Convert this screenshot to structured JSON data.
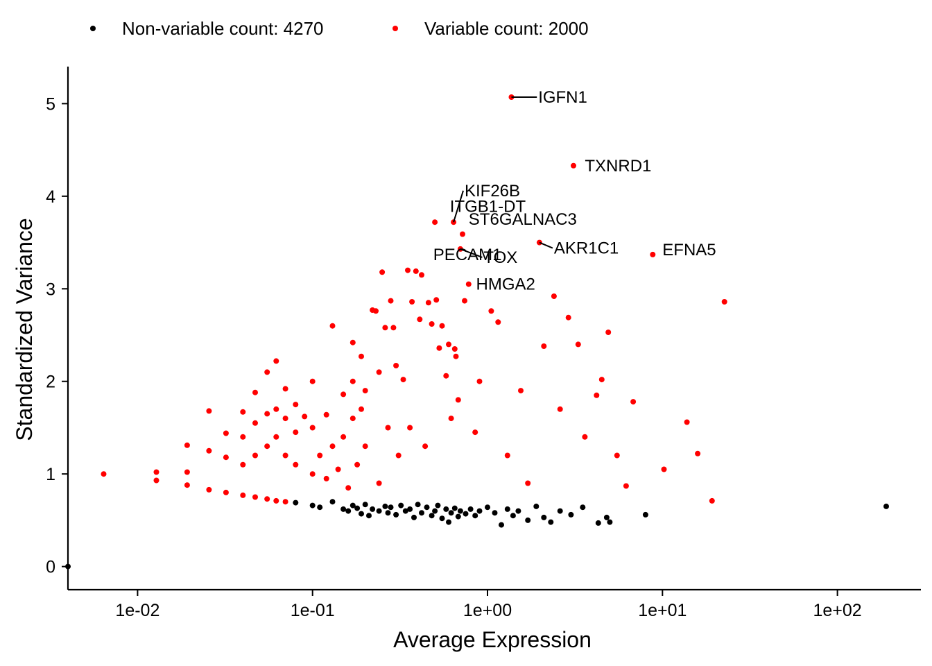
{
  "chart_data": {
    "type": "scatter",
    "xscale": "log10",
    "xlabel": "Average Expression",
    "ylabel": "Standardized Variance",
    "xlim": [
      0.004,
      300
    ],
    "ylim": [
      -0.25,
      5.4
    ],
    "x_ticks": [
      {
        "value": 0.01,
        "label": "1e-02"
      },
      {
        "value": 0.1,
        "label": "1e-01"
      },
      {
        "value": 1,
        "label": "1e+00"
      },
      {
        "value": 10,
        "label": "1e+01"
      },
      {
        "value": 100,
        "label": "1e+02"
      }
    ],
    "y_ticks": [
      {
        "value": 0,
        "label": "0"
      },
      {
        "value": 1,
        "label": "1"
      },
      {
        "value": 2,
        "label": "2"
      },
      {
        "value": 3,
        "label": "3"
      },
      {
        "value": 4,
        "label": "4"
      },
      {
        "value": 5,
        "label": "5"
      }
    ],
    "grid": false,
    "legend_position": "top",
    "legend": [
      {
        "series": "nonvariable",
        "label": "Non-variable count: 4270",
        "color": "#000000"
      },
      {
        "series": "variable",
        "label": "Variable count: 2000",
        "color": "#ff0000"
      }
    ],
    "series": [
      {
        "name": "Non-variable count: 4270",
        "color": "#000000",
        "points": [
          [
            0.004,
            0.0
          ],
          [
            0.08,
            0.69
          ],
          [
            0.1,
            0.66
          ],
          [
            0.11,
            0.64
          ],
          [
            0.13,
            0.7
          ],
          [
            0.15,
            0.62
          ],
          [
            0.16,
            0.6
          ],
          [
            0.17,
            0.66
          ],
          [
            0.18,
            0.63
          ],
          [
            0.19,
            0.57
          ],
          [
            0.2,
            0.67
          ],
          [
            0.21,
            0.55
          ],
          [
            0.22,
            0.62
          ],
          [
            0.24,
            0.6
          ],
          [
            0.26,
            0.65
          ],
          [
            0.27,
            0.58
          ],
          [
            0.28,
            0.64
          ],
          [
            0.3,
            0.56
          ],
          [
            0.32,
            0.66
          ],
          [
            0.34,
            0.6
          ],
          [
            0.36,
            0.62
          ],
          [
            0.38,
            0.53
          ],
          [
            0.4,
            0.67
          ],
          [
            0.42,
            0.58
          ],
          [
            0.45,
            0.64
          ],
          [
            0.48,
            0.55
          ],
          [
            0.5,
            0.6
          ],
          [
            0.52,
            0.66
          ],
          [
            0.55,
            0.52
          ],
          [
            0.58,
            0.62
          ],
          [
            0.6,
            0.48
          ],
          [
            0.62,
            0.58
          ],
          [
            0.65,
            0.63
          ],
          [
            0.68,
            0.54
          ],
          [
            0.7,
            0.6
          ],
          [
            0.75,
            0.57
          ],
          [
            0.8,
            0.62
          ],
          [
            0.85,
            0.55
          ],
          [
            0.9,
            0.6
          ],
          [
            1.0,
            0.64
          ],
          [
            1.1,
            0.58
          ],
          [
            1.2,
            0.45
          ],
          [
            1.3,
            0.62
          ],
          [
            1.4,
            0.55
          ],
          [
            1.5,
            0.6
          ],
          [
            1.7,
            0.5
          ],
          [
            1.9,
            0.65
          ],
          [
            2.1,
            0.53
          ],
          [
            2.3,
            0.48
          ],
          [
            2.6,
            0.6
          ],
          [
            3.0,
            0.56
          ],
          [
            3.5,
            0.64
          ],
          [
            4.3,
            0.47
          ],
          [
            4.8,
            0.53
          ],
          [
            5.0,
            0.48
          ],
          [
            8.0,
            0.56
          ],
          [
            190.0,
            0.65
          ]
        ]
      },
      {
        "name": "Variable count: 2000",
        "color": "#ff0000",
        "points": [
          [
            0.0064,
            1.0
          ],
          [
            0.0128,
            1.02
          ],
          [
            0.0128,
            0.93
          ],
          [
            0.0192,
            1.31
          ],
          [
            0.0192,
            1.02
          ],
          [
            0.0192,
            0.88
          ],
          [
            0.0256,
            1.68
          ],
          [
            0.0256,
            1.25
          ],
          [
            0.0256,
            0.83
          ],
          [
            0.032,
            1.44
          ],
          [
            0.032,
            1.18
          ],
          [
            0.032,
            0.8
          ],
          [
            0.04,
            1.67
          ],
          [
            0.04,
            1.4
          ],
          [
            0.04,
            1.1
          ],
          [
            0.04,
            0.77
          ],
          [
            0.047,
            1.88
          ],
          [
            0.047,
            1.55
          ],
          [
            0.047,
            1.2
          ],
          [
            0.047,
            0.75
          ],
          [
            0.055,
            2.1
          ],
          [
            0.055,
            1.65
          ],
          [
            0.055,
            1.3
          ],
          [
            0.055,
            0.73
          ],
          [
            0.062,
            2.22
          ],
          [
            0.062,
            1.7
          ],
          [
            0.062,
            1.4
          ],
          [
            0.062,
            0.71
          ],
          [
            0.07,
            1.92
          ],
          [
            0.07,
            1.6
          ],
          [
            0.07,
            1.2
          ],
          [
            0.07,
            0.7
          ],
          [
            0.08,
            1.75
          ],
          [
            0.08,
            1.45
          ],
          [
            0.08,
            1.1
          ],
          [
            0.09,
            1.62
          ],
          [
            0.1,
            2.0
          ],
          [
            0.1,
            1.5
          ],
          [
            0.1,
            1.0
          ],
          [
            0.11,
            1.2
          ],
          [
            0.12,
            1.64
          ],
          [
            0.12,
            0.95
          ],
          [
            0.13,
            2.6
          ],
          [
            0.13,
            1.3
          ],
          [
            0.14,
            1.05
          ],
          [
            0.15,
            1.86
          ],
          [
            0.15,
            1.4
          ],
          [
            0.16,
            0.85
          ],
          [
            0.17,
            2.42
          ],
          [
            0.17,
            2.0
          ],
          [
            0.17,
            1.6
          ],
          [
            0.18,
            1.1
          ],
          [
            0.19,
            2.27
          ],
          [
            0.19,
            1.7
          ],
          [
            0.2,
            1.9
          ],
          [
            0.2,
            1.3
          ],
          [
            0.22,
            2.77
          ],
          [
            0.23,
            2.76
          ],
          [
            0.24,
            2.1
          ],
          [
            0.24,
            0.9
          ],
          [
            0.25,
            3.18
          ],
          [
            0.26,
            2.58
          ],
          [
            0.27,
            1.5
          ],
          [
            0.28,
            2.87
          ],
          [
            0.29,
            2.58
          ],
          [
            0.3,
            2.17
          ],
          [
            0.31,
            1.2
          ],
          [
            0.33,
            2.02
          ],
          [
            0.35,
            3.2
          ],
          [
            0.36,
            1.5
          ],
          [
            0.37,
            2.86
          ],
          [
            0.39,
            3.19
          ],
          [
            0.41,
            2.67
          ],
          [
            0.42,
            3.15
          ],
          [
            0.44,
            1.3
          ],
          [
            0.46,
            2.85
          ],
          [
            0.48,
            2.62
          ],
          [
            0.5,
            3.72
          ],
          [
            0.51,
            2.88
          ],
          [
            0.53,
            2.36
          ],
          [
            0.55,
            2.6
          ],
          [
            0.58,
            2.06
          ],
          [
            0.6,
            2.4
          ],
          [
            0.62,
            1.6
          ],
          [
            0.64,
            3.72
          ],
          [
            0.65,
            2.35
          ],
          [
            0.66,
            2.27
          ],
          [
            0.68,
            1.8
          ],
          [
            0.7,
            3.43
          ],
          [
            0.72,
            3.59
          ],
          [
            0.74,
            2.87
          ],
          [
            0.78,
            3.05
          ],
          [
            0.85,
            1.45
          ],
          [
            0.9,
            2.0
          ],
          [
            1.05,
            2.76
          ],
          [
            1.15,
            2.64
          ],
          [
            1.3,
            1.2
          ],
          [
            1.37,
            5.07
          ],
          [
            1.55,
            1.9
          ],
          [
            1.7,
            0.9
          ],
          [
            1.98,
            3.5
          ],
          [
            2.1,
            2.38
          ],
          [
            2.4,
            2.92
          ],
          [
            2.6,
            1.7
          ],
          [
            2.9,
            2.69
          ],
          [
            3.1,
            4.33
          ],
          [
            3.3,
            2.4
          ],
          [
            3.6,
            1.4
          ],
          [
            4.2,
            1.85
          ],
          [
            4.5,
            2.02
          ],
          [
            4.9,
            2.53
          ],
          [
            5.5,
            1.2
          ],
          [
            6.2,
            0.87
          ],
          [
            6.8,
            1.78
          ],
          [
            8.8,
            3.37
          ],
          [
            10.2,
            1.05
          ],
          [
            13.8,
            1.56
          ],
          [
            15.9,
            1.22
          ],
          [
            19.2,
            0.71
          ],
          [
            22.6,
            2.86
          ]
        ]
      }
    ],
    "annotations": [
      {
        "text": "IGFN1",
        "x": 1.37,
        "y": 5.07,
        "label_x": 1.95,
        "label_y": 5.07,
        "leader": true
      },
      {
        "text": "TXNRD1",
        "x": 3.1,
        "y": 4.33,
        "label_x": 3.6,
        "label_y": 4.33,
        "leader": false
      },
      {
        "text": "KIF26B",
        "x": 0.64,
        "y": 3.72,
        "label_x": 0.74,
        "label_y": 4.06,
        "leader": true
      },
      {
        "text": "ITGB1-DT",
        "x": 0.5,
        "y": 3.72,
        "label_x": 0.61,
        "label_y": 3.89,
        "leader": false
      },
      {
        "text": "ST6GALNAC3",
        "x": 0.72,
        "y": 3.59,
        "label_x": 0.78,
        "label_y": 3.75,
        "leader": false
      },
      {
        "text": "AKR1C1",
        "x": 1.98,
        "y": 3.5,
        "label_x": 2.4,
        "label_y": 3.44,
        "leader": true
      },
      {
        "text": "EFNA5",
        "x": 8.8,
        "y": 3.37,
        "label_x": 10.0,
        "label_y": 3.42,
        "leader": false
      },
      {
        "text": "PECAM1",
        "x": 0.25,
        "y": 3.18,
        "label_x": 0.49,
        "label_y": 3.37,
        "leader": false
      },
      {
        "text": "TOX",
        "x": 0.7,
        "y": 3.43,
        "label_x": 0.95,
        "label_y": 3.34,
        "leader": true
      },
      {
        "text": "HMGA2",
        "x": 0.78,
        "y": 3.05,
        "label_x": 0.86,
        "label_y": 3.05,
        "leader": false
      }
    ]
  }
}
